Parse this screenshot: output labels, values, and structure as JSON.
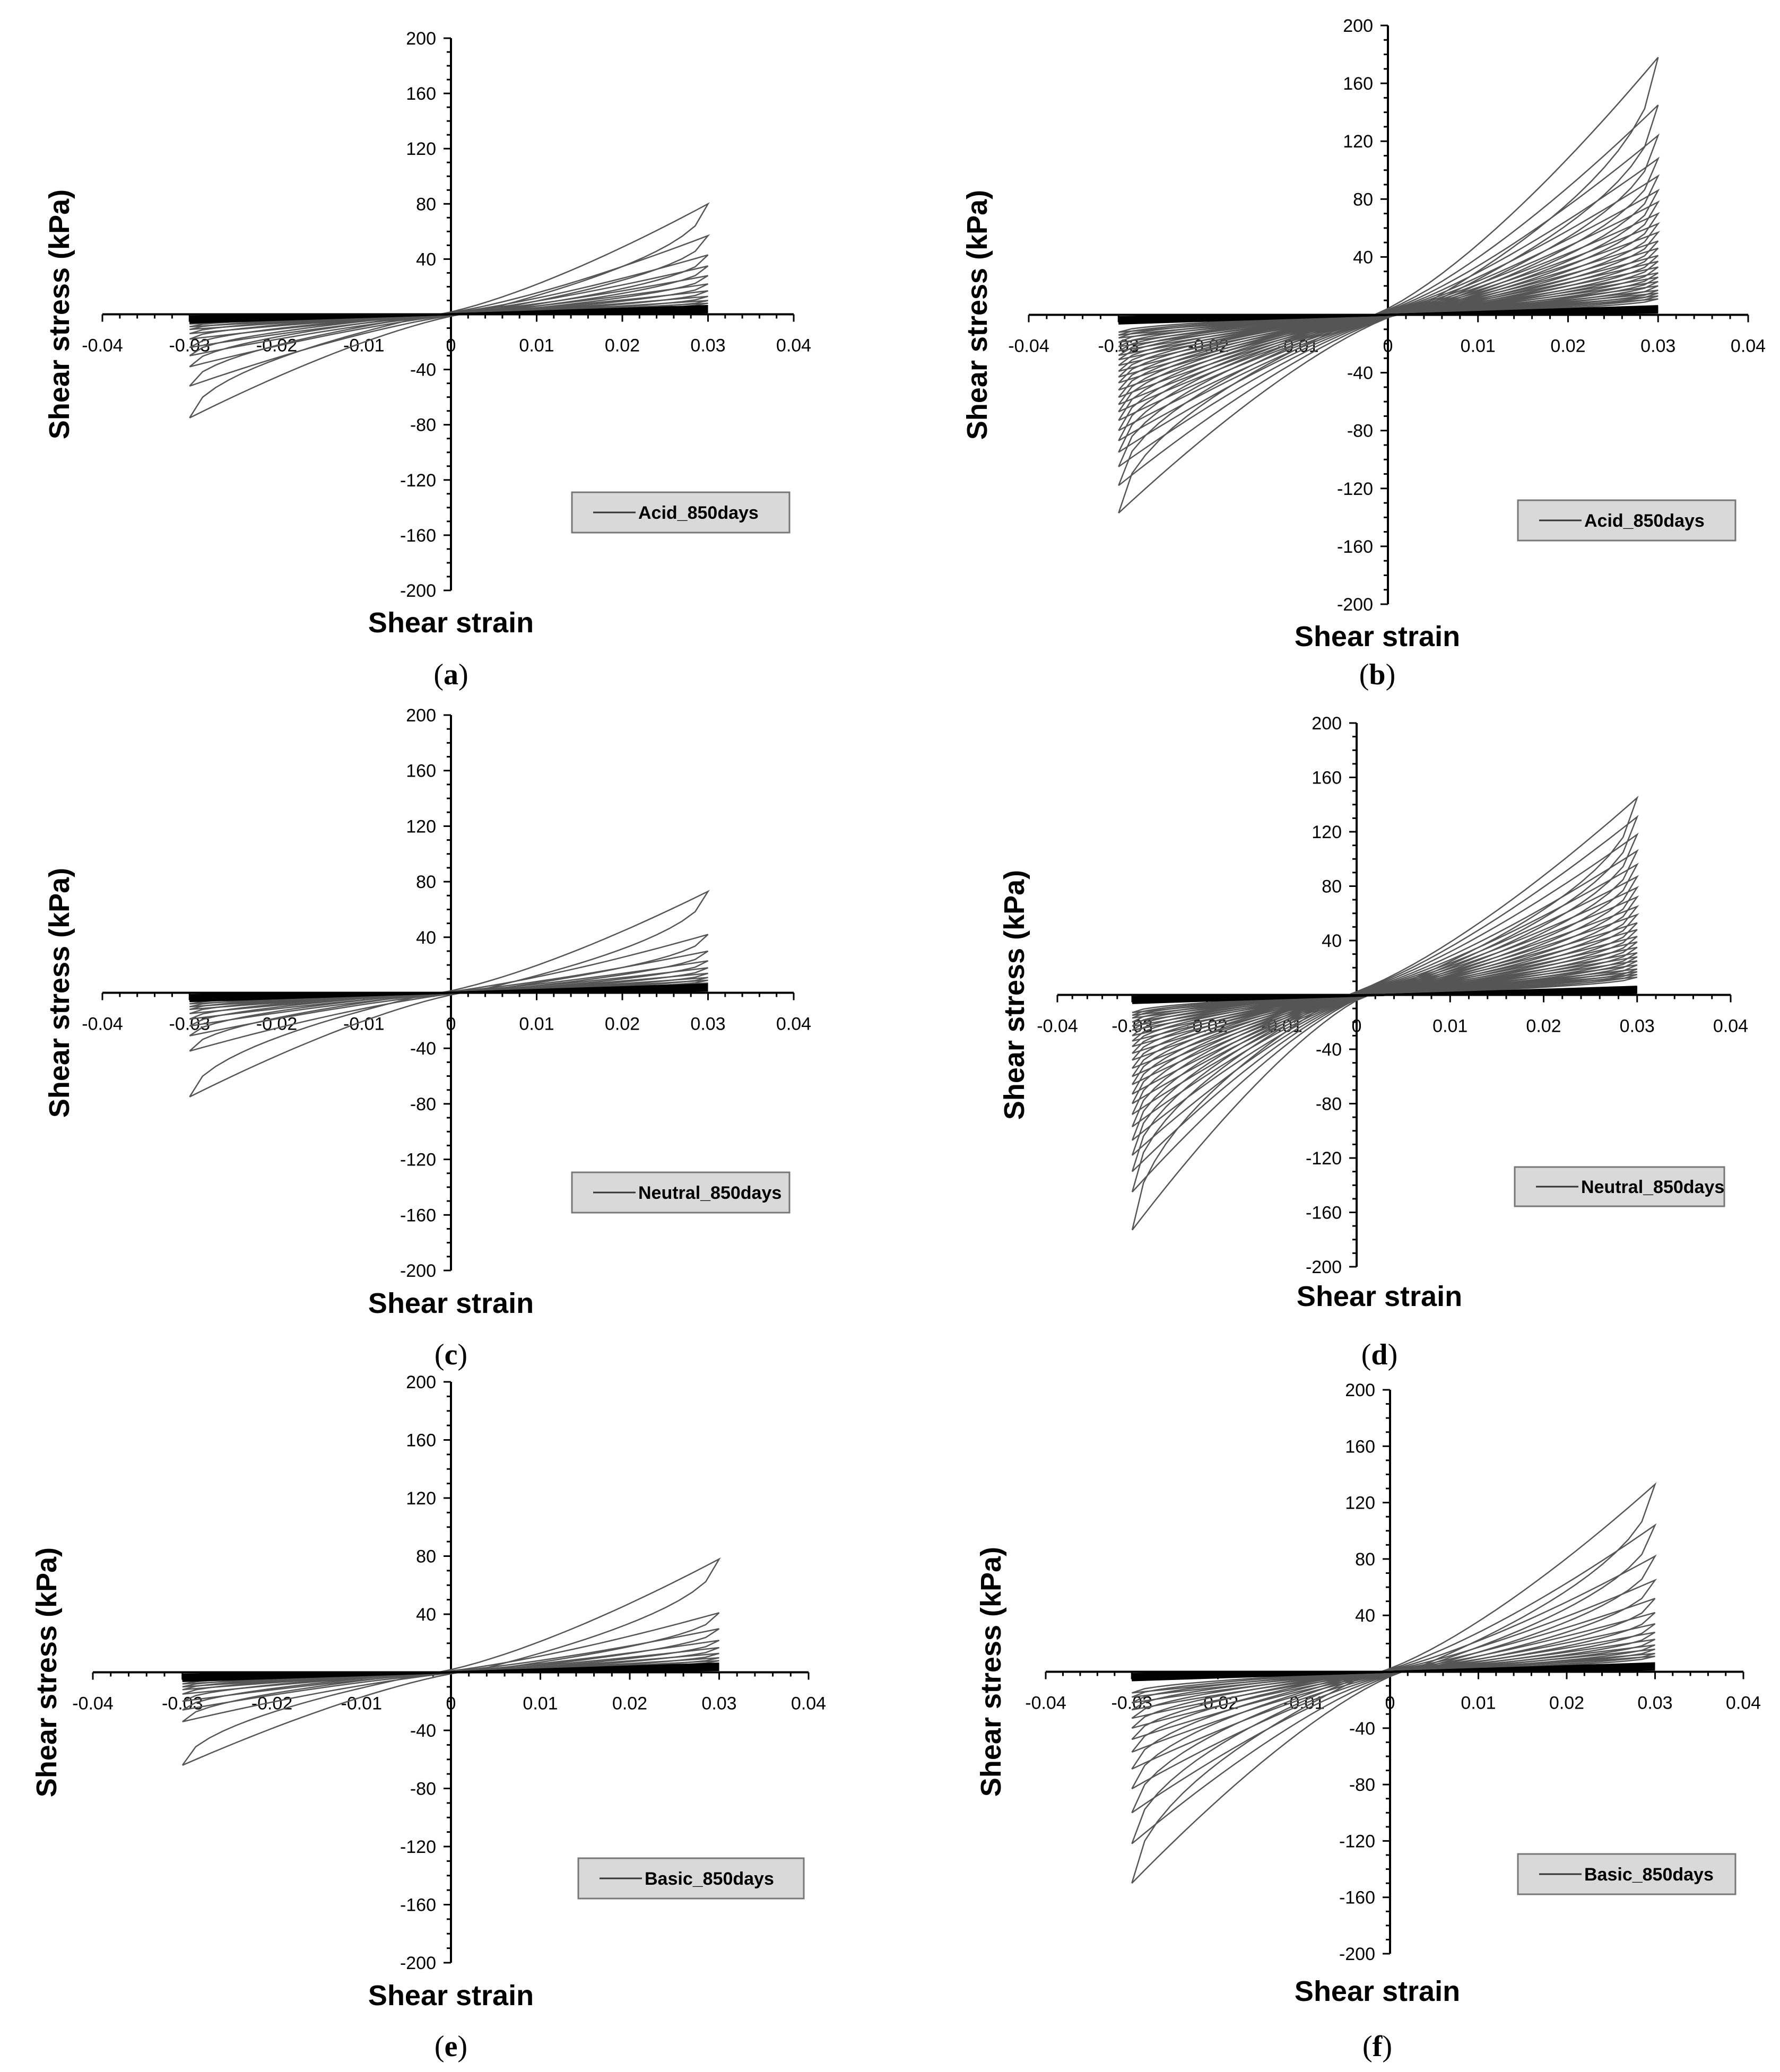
{
  "figure": {
    "panels": [
      {
        "id": "a",
        "label": "(a)",
        "legend": "Acid_850days",
        "ylabel": "Shear stress (kPa)",
        "xlabel": "Shear strain"
      },
      {
        "id": "b",
        "label": "(b)",
        "legend": "Acid_850days",
        "ylabel": "Shear stress (kPa)",
        "xlabel": "Shear strain"
      },
      {
        "id": "c",
        "label": "(c)",
        "legend": "Neutral_850days",
        "ylabel": "Shear stress (kPa)",
        "xlabel": "Shear strain"
      },
      {
        "id": "d",
        "label": "(d)",
        "legend": "Neutral_850days",
        "ylabel": "Shear stress (kPa)",
        "xlabel": "Shear strain"
      },
      {
        "id": "e",
        "label": "(e)",
        "legend": "Basic_850days",
        "ylabel": "Shear stress (kPa)",
        "xlabel": "Shear strain"
      },
      {
        "id": "f",
        "label": "(f)",
        "legend": "Basic_850days",
        "ylabel": "Shear stress (kPa)",
        "xlabel": "Shear strain"
      }
    ]
  },
  "chart_data": [
    {
      "id": "a",
      "type": "line",
      "title": "",
      "xlabel": "Shear strain",
      "ylabel": "Shear stress (kPa)",
      "xlim": [
        -0.04,
        0.04
      ],
      "ylim": [
        -200,
        200
      ],
      "xticks": [
        "-0.04",
        "-0.03",
        "-0.02",
        "-0.01",
        "0",
        "0.01",
        "0.02",
        "0.03",
        "0.04"
      ],
      "yticks": [
        "200",
        "160",
        "120",
        "80",
        "40",
        "-40",
        "-80",
        "-120",
        "-160",
        "-200"
      ],
      "legend": "Acid_850days",
      "legend_position": "bottom-right",
      "series": [
        {
          "name": "Acid_850days",
          "color": "#555555",
          "loop_amplitudes_kpa": [
            80,
            57,
            43,
            35,
            28,
            22,
            17,
            13,
            10,
            8,
            6
          ],
          "min_peaks_kpa": [
            -75,
            -52,
            -38,
            -30,
            -24,
            -18,
            -14,
            -11,
            -9,
            -7,
            -6
          ]
        }
      ]
    },
    {
      "id": "b",
      "type": "line",
      "title": "",
      "xlabel": "Shear strain",
      "ylabel": "Shear stress (kPa)",
      "xlim": [
        -0.04,
        0.04
      ],
      "ylim": [
        -200,
        200
      ],
      "xticks": [
        "-0.04",
        "-0.03",
        "-0.02",
        "-0.01",
        "0",
        "0.01",
        "0.02",
        "0.03",
        "0.04"
      ],
      "yticks": [
        "200",
        "160",
        "120",
        "80",
        "40",
        "-40",
        "-80",
        "-120",
        "-160",
        "-200"
      ],
      "legend": "Acid_850days",
      "legend_position": "bottom-right",
      "series": [
        {
          "name": "Acid_850days",
          "color": "#555555",
          "loop_amplitudes_kpa": [
            178,
            145,
            124,
            108,
            96,
            86,
            78,
            70,
            63,
            57,
            51,
            46,
            41,
            37,
            33,
            29,
            26,
            23,
            20,
            17,
            15,
            13,
            11
          ],
          "min_peaks_kpa": [
            -137,
            -118,
            -105,
            -95,
            -87,
            -80,
            -73,
            -67,
            -62,
            -57,
            -52,
            -47,
            -43,
            -39,
            -35,
            -31,
            -28,
            -25,
            -22,
            -19,
            -16,
            -14,
            -12
          ]
        }
      ]
    },
    {
      "id": "c",
      "type": "line",
      "title": "",
      "xlabel": "Shear strain",
      "ylabel": "Shear stress (kPa)",
      "xlim": [
        -0.04,
        0.04
      ],
      "ylim": [
        -200,
        200
      ],
      "xticks": [
        "-0.04",
        "-0.03",
        "-0.02",
        "-0.01",
        "0",
        "0.01",
        "0.02",
        "0.03",
        "0.04"
      ],
      "yticks": [
        "200",
        "160",
        "120",
        "80",
        "40",
        "-40",
        "-80",
        "-120",
        "-160",
        "-200"
      ],
      "legend": "Neutral_850days",
      "legend_position": "bottom-right",
      "series": [
        {
          "name": "Neutral_850days",
          "color": "#555555",
          "loop_amplitudes_kpa": [
            73,
            42,
            30,
            23,
            18,
            14,
            11,
            9,
            7,
            6
          ],
          "min_peaks_kpa": [
            -75,
            -42,
            -31,
            -24,
            -19,
            -15,
            -12,
            -10,
            -8,
            -6
          ]
        }
      ]
    },
    {
      "id": "d",
      "type": "line",
      "title": "",
      "xlabel": "Shear strain",
      "ylabel": "Shear stress (kPa)",
      "xlim": [
        -0.04,
        0.04
      ],
      "ylim": [
        -200,
        200
      ],
      "xticks": [
        "-0.04",
        "-0.03",
        "-0.02",
        "-0.01",
        "0",
        "0.01",
        "0.02",
        "0.03",
        "0.04"
      ],
      "yticks": [
        "200",
        "160",
        "120",
        "80",
        "40",
        "-40",
        "-80",
        "-120",
        "-160",
        "-200"
      ],
      "legend": "Neutral_850days",
      "legend_position": "bottom-right",
      "series": [
        {
          "name": "Neutral_850days",
          "color": "#555555",
          "loop_amplitudes_kpa": [
            145,
            131,
            118,
            106,
            96,
            87,
            79,
            72,
            65,
            59,
            53,
            48,
            43,
            39,
            35,
            31,
            28,
            25,
            22,
            19,
            17,
            15,
            13
          ],
          "min_peaks_kpa": [
            -173,
            -145,
            -130,
            -118,
            -107,
            -97,
            -88,
            -80,
            -73,
            -66,
            -60,
            -54,
            -48,
            -43,
            -38,
            -34,
            -30,
            -26,
            -23,
            -20,
            -17,
            -15,
            -13
          ]
        }
      ]
    },
    {
      "id": "e",
      "type": "line",
      "title": "",
      "xlabel": "Shear strain",
      "ylabel": "Shear stress (kPa)",
      "xlim": [
        -0.04,
        0.04
      ],
      "ylim": [
        -200,
        200
      ],
      "xticks": [
        "-0.04",
        "-0.03",
        "-0.02",
        "-0.01",
        "0",
        "0.01",
        "0.02",
        "0.03",
        "0.04"
      ],
      "yticks": [
        "200",
        "160",
        "120",
        "80",
        "40",
        "-40",
        "-80",
        "-120",
        "-160",
        "-200"
      ],
      "legend": "Basic_850days",
      "legend_position": "bottom-right",
      "series": [
        {
          "name": "Basic_850days",
          "color": "#555555",
          "loop_amplitudes_kpa": [
            78,
            41,
            30,
            22,
            17,
            13,
            10,
            8,
            6
          ],
          "min_peaks_kpa": [
            -64,
            -34,
            -26,
            -20,
            -15,
            -12,
            -10,
            -8,
            -6
          ]
        }
      ]
    },
    {
      "id": "f",
      "type": "line",
      "title": "",
      "xlabel": "Shear strain",
      "ylabel": "Shear stress (kPa)",
      "xlim": [
        -0.04,
        0.04
      ],
      "ylim": [
        -200,
        200
      ],
      "xticks": [
        "-0.04",
        "-0.03",
        "-0.02",
        "-0.01",
        "0",
        "0.01",
        "0.02",
        "0.03",
        "0.04"
      ],
      "yticks": [
        "200",
        "160",
        "120",
        "80",
        "40",
        "-40",
        "-80",
        "-120",
        "-160",
        "-200"
      ],
      "legend": "Basic_850days",
      "legend_position": "bottom-right",
      "series": [
        {
          "name": "Basic_850days",
          "color": "#555555",
          "loop_amplitudes_kpa": [
            133,
            104,
            82,
            65,
            52,
            42,
            34,
            28,
            23,
            19,
            16,
            13,
            11
          ],
          "min_peaks_kpa": [
            -150,
            -122,
            -100,
            -83,
            -69,
            -57,
            -48,
            -40,
            -33,
            -27,
            -22,
            -18,
            -15
          ]
        }
      ]
    }
  ]
}
